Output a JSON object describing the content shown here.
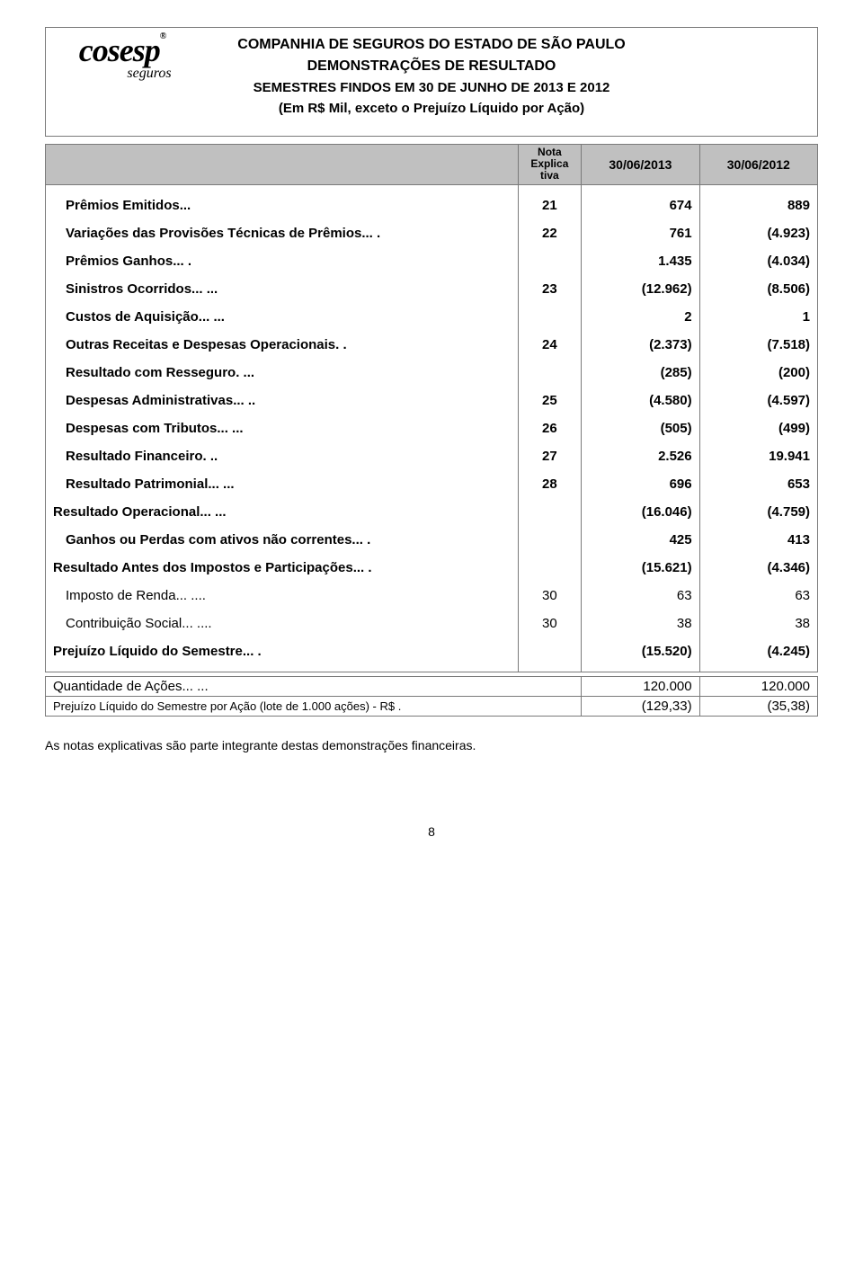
{
  "logo": {
    "name": "cosesp",
    "sub": "seguros",
    "reg": "®"
  },
  "header": {
    "line1": "COMPANHIA DE SEGUROS DO ESTADO DE SÃO PAULO",
    "line2": "DEMONSTRAÇÕES DE RESULTADO",
    "line3": "SEMESTRES FINDOS EM 30 DE JUNHO DE 2013 E 2012",
    "line4": "(Em R$ Mil, exceto o Prejuízo Líquido por Ação)"
  },
  "columns": {
    "nota_l1": "Nota",
    "nota_l2": "Explica",
    "nota_l3": "tiva",
    "date1": "30/06/2013",
    "date2": "30/06/2012"
  },
  "rows": [
    {
      "label": "Prêmios Emitidos... ",
      "nota": "21",
      "v1": "674",
      "v2": "889",
      "bold": true
    },
    {
      "label": "Variações das Provisões Técnicas de Prêmios... .",
      "nota": "22",
      "v1": "761",
      "v2": "(4.923)",
      "bold": true
    },
    {
      "label": "Prêmios Ganhos... .",
      "nota": "",
      "v1": "1.435",
      "v2": "(4.034)",
      "bold": true
    },
    {
      "label": "Sinistros Ocorridos... ...",
      "nota": "23",
      "v1": "(12.962)",
      "v2": "(8.506)",
      "bold": true
    },
    {
      "label": "Custos de Aquisição... ...",
      "nota": "",
      "v1": "2",
      "v2": "1",
      "bold": true
    },
    {
      "label": "Outras Receitas e Despesas Operacionais. .",
      "nota": "24",
      "v1": "(2.373)",
      "v2": "(7.518)",
      "bold": true
    },
    {
      "label": "Resultado com Resseguro. ...",
      "nota": "",
      "v1": "(285)",
      "v2": "(200)",
      "bold": true
    },
    {
      "label": "Despesas Administrativas... ..",
      "nota": "25",
      "v1": "(4.580)",
      "v2": "(4.597)",
      "bold": true
    },
    {
      "label": "Despesas com Tributos... ...",
      "nota": "26",
      "v1": "(505)",
      "v2": "(499)",
      "bold": true
    },
    {
      "label": "Resultado Financeiro. ..",
      "nota": "27",
      "v1": "2.526",
      "v2": "19.941",
      "bold": true
    },
    {
      "label": "Resultado Patrimonial... ...",
      "nota": "28",
      "v1": "696",
      "v2": "653",
      "bold": true
    },
    {
      "label": "Resultado Operacional... ...",
      "nota": "",
      "v1": "(16.046)",
      "v2": "(4.759)",
      "bold": true,
      "noindent": true
    },
    {
      "label": "Ganhos ou Perdas com ativos não correntes... .",
      "nota": "",
      "v1": "425",
      "v2": "413",
      "bold": true
    },
    {
      "label": "Resultado Antes dos Impostos e Participações... .",
      "nota": "",
      "v1": "(15.621)",
      "v2": "(4.346)",
      "bold": true,
      "noindent": true
    },
    {
      "label": "Imposto de Renda... ....",
      "nota": "30",
      "v1": "63",
      "v2": "63",
      "bold": false
    },
    {
      "label": "Contribuição Social... ....",
      "nota": "30",
      "v1": "38",
      "v2": "38",
      "bold": false
    },
    {
      "label": "Prejuízo Líquido do Semestre... .",
      "nota": "",
      "v1": "(15.520)",
      "v2": "(4.245)",
      "bold": true,
      "noindent": true
    }
  ],
  "footer_rows": [
    {
      "label": "Quantidade de Ações... ...",
      "v1": "120.000",
      "v2": "120.000",
      "small": false
    },
    {
      "label": "Prejuízo Líquido do Semestre por Ação (lote de 1.000 ações) - R$ .",
      "v1": "(129,33)",
      "v2": "(35,38)",
      "small": true
    }
  ],
  "footnote": "As notas explicativas são parte integrante destas demonstrações financeiras.",
  "pagenum": "8"
}
